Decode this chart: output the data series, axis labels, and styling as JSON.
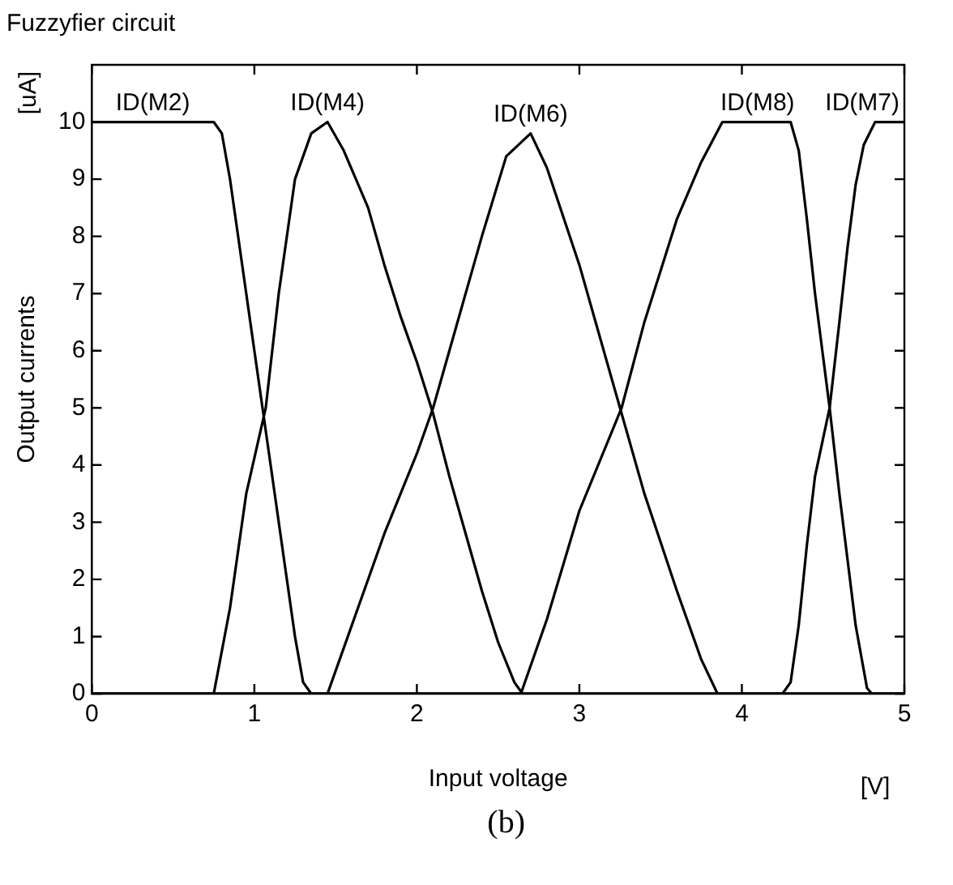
{
  "chart_data": {
    "type": "line",
    "title": "Fuzzyfier circuit",
    "xlabel": "Input voltage",
    "ylabel": "Output currents",
    "annotations": [
      "[uA]",
      "[V]",
      "(b)"
    ],
    "xlim": [
      0,
      5
    ],
    "ylim": [
      0,
      11
    ],
    "xticks": [
      0,
      1,
      2,
      3,
      4,
      5
    ],
    "yticks": [
      0,
      1,
      2,
      3,
      4,
      5,
      6,
      7,
      8,
      9,
      10
    ],
    "grid": false,
    "legend": "top",
    "marker": "none",
    "line_style": "solid",
    "series": [
      {
        "name": "ID(M2)",
        "color": "#000000",
        "x": [
          0,
          0.75,
          0.8,
          0.85,
          0.9,
          0.95,
          1.0,
          1.05,
          1.1,
          1.15,
          1.2,
          1.25,
          1.3,
          1.35,
          1.45,
          5
        ],
        "values": [
          10,
          10,
          9.8,
          9,
          8,
          7,
          6,
          5,
          4,
          3,
          2,
          1,
          0.2,
          0,
          0,
          0
        ]
      },
      {
        "name": "ID(M4)",
        "color": "#000000",
        "x": [
          0,
          0.75,
          0.85,
          0.95,
          1.07,
          1.15,
          1.25,
          1.35,
          1.45,
          1.55,
          1.7,
          1.8,
          1.9,
          2.0,
          2.1,
          2.2,
          2.3,
          2.4,
          2.5,
          2.6,
          2.65,
          5
        ],
        "values": [
          0,
          0,
          1.5,
          3.5,
          5,
          7,
          9,
          9.8,
          10,
          9.5,
          8.5,
          7.5,
          6.6,
          5.8,
          4.9,
          3.8,
          2.8,
          1.8,
          0.9,
          0.2,
          0,
          0
        ]
      },
      {
        "name": "ID(M6)",
        "color": "#000000",
        "x": [
          0,
          1.45,
          1.6,
          1.8,
          2.0,
          2.1,
          2.2,
          2.4,
          2.55,
          2.7,
          2.8,
          3.0,
          3.1,
          3.25,
          3.4,
          3.6,
          3.75,
          3.85,
          5
        ],
        "values": [
          0,
          0,
          1.2,
          2.8,
          4.2,
          5,
          6,
          8,
          9.4,
          9.8,
          9.2,
          7.5,
          6.5,
          5,
          3.5,
          1.8,
          0.6,
          0,
          0
        ]
      },
      {
        "name": "ID(M8)",
        "color": "#000000",
        "x": [
          0,
          2.64,
          2.8,
          3.0,
          3.26,
          3.4,
          3.6,
          3.75,
          3.88,
          4.0,
          4.1,
          4.2,
          4.3,
          4.35,
          4.4,
          4.45,
          4.54,
          4.6,
          4.7,
          4.77,
          4.8,
          5
        ],
        "values": [
          0,
          0,
          1.3,
          3.2,
          5,
          6.5,
          8.3,
          9.3,
          10,
          10,
          10,
          10,
          10,
          9.5,
          8.3,
          7,
          5,
          3.5,
          1.2,
          0.1,
          0,
          0
        ]
      },
      {
        "name": "ID(M7)",
        "color": "#000000",
        "x": [
          0,
          4.25,
          4.3,
          4.35,
          4.4,
          4.45,
          4.54,
          4.6,
          4.65,
          4.7,
          4.75,
          4.82,
          4.9,
          5
        ],
        "values": [
          0,
          0,
          0.2,
          1.2,
          2.6,
          3.8,
          5,
          6.5,
          7.8,
          8.9,
          9.6,
          10,
          10,
          10
        ]
      }
    ]
  }
}
